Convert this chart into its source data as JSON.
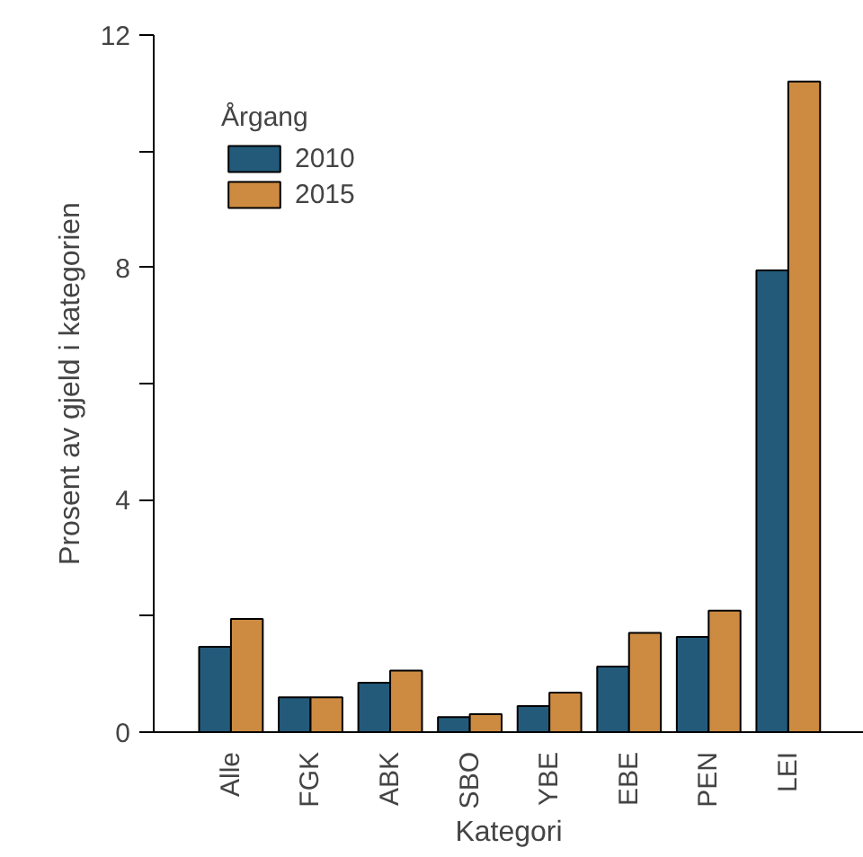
{
  "chart_data": {
    "type": "bar",
    "xlabel": "Kategori",
    "ylabel": "Prosent av gjeld i kategorien",
    "legend_title": "Årgang",
    "categories": [
      "Alle",
      "FGK",
      "ABK",
      "SBO",
      "YBE",
      "EBE",
      "PEN",
      "LEI"
    ],
    "series": [
      {
        "name": "2010",
        "color": "#235a7a",
        "values": [
          1.47,
          0.6,
          0.85,
          0.26,
          0.45,
          1.13,
          1.64,
          7.95
        ]
      },
      {
        "name": "2015",
        "color": "#cd8b42",
        "values": [
          1.95,
          0.6,
          1.06,
          0.31,
          0.68,
          1.71,
          2.09,
          11.2
        ]
      }
    ],
    "ylim": [
      0,
      12
    ],
    "yticks": [
      0,
      {
        "value": 2,
        "label": null
      },
      4,
      {
        "value": 6,
        "label": null
      },
      8,
      {
        "value": 10,
        "label": null
      },
      12
    ],
    "grid": false,
    "legend": "top left"
  }
}
